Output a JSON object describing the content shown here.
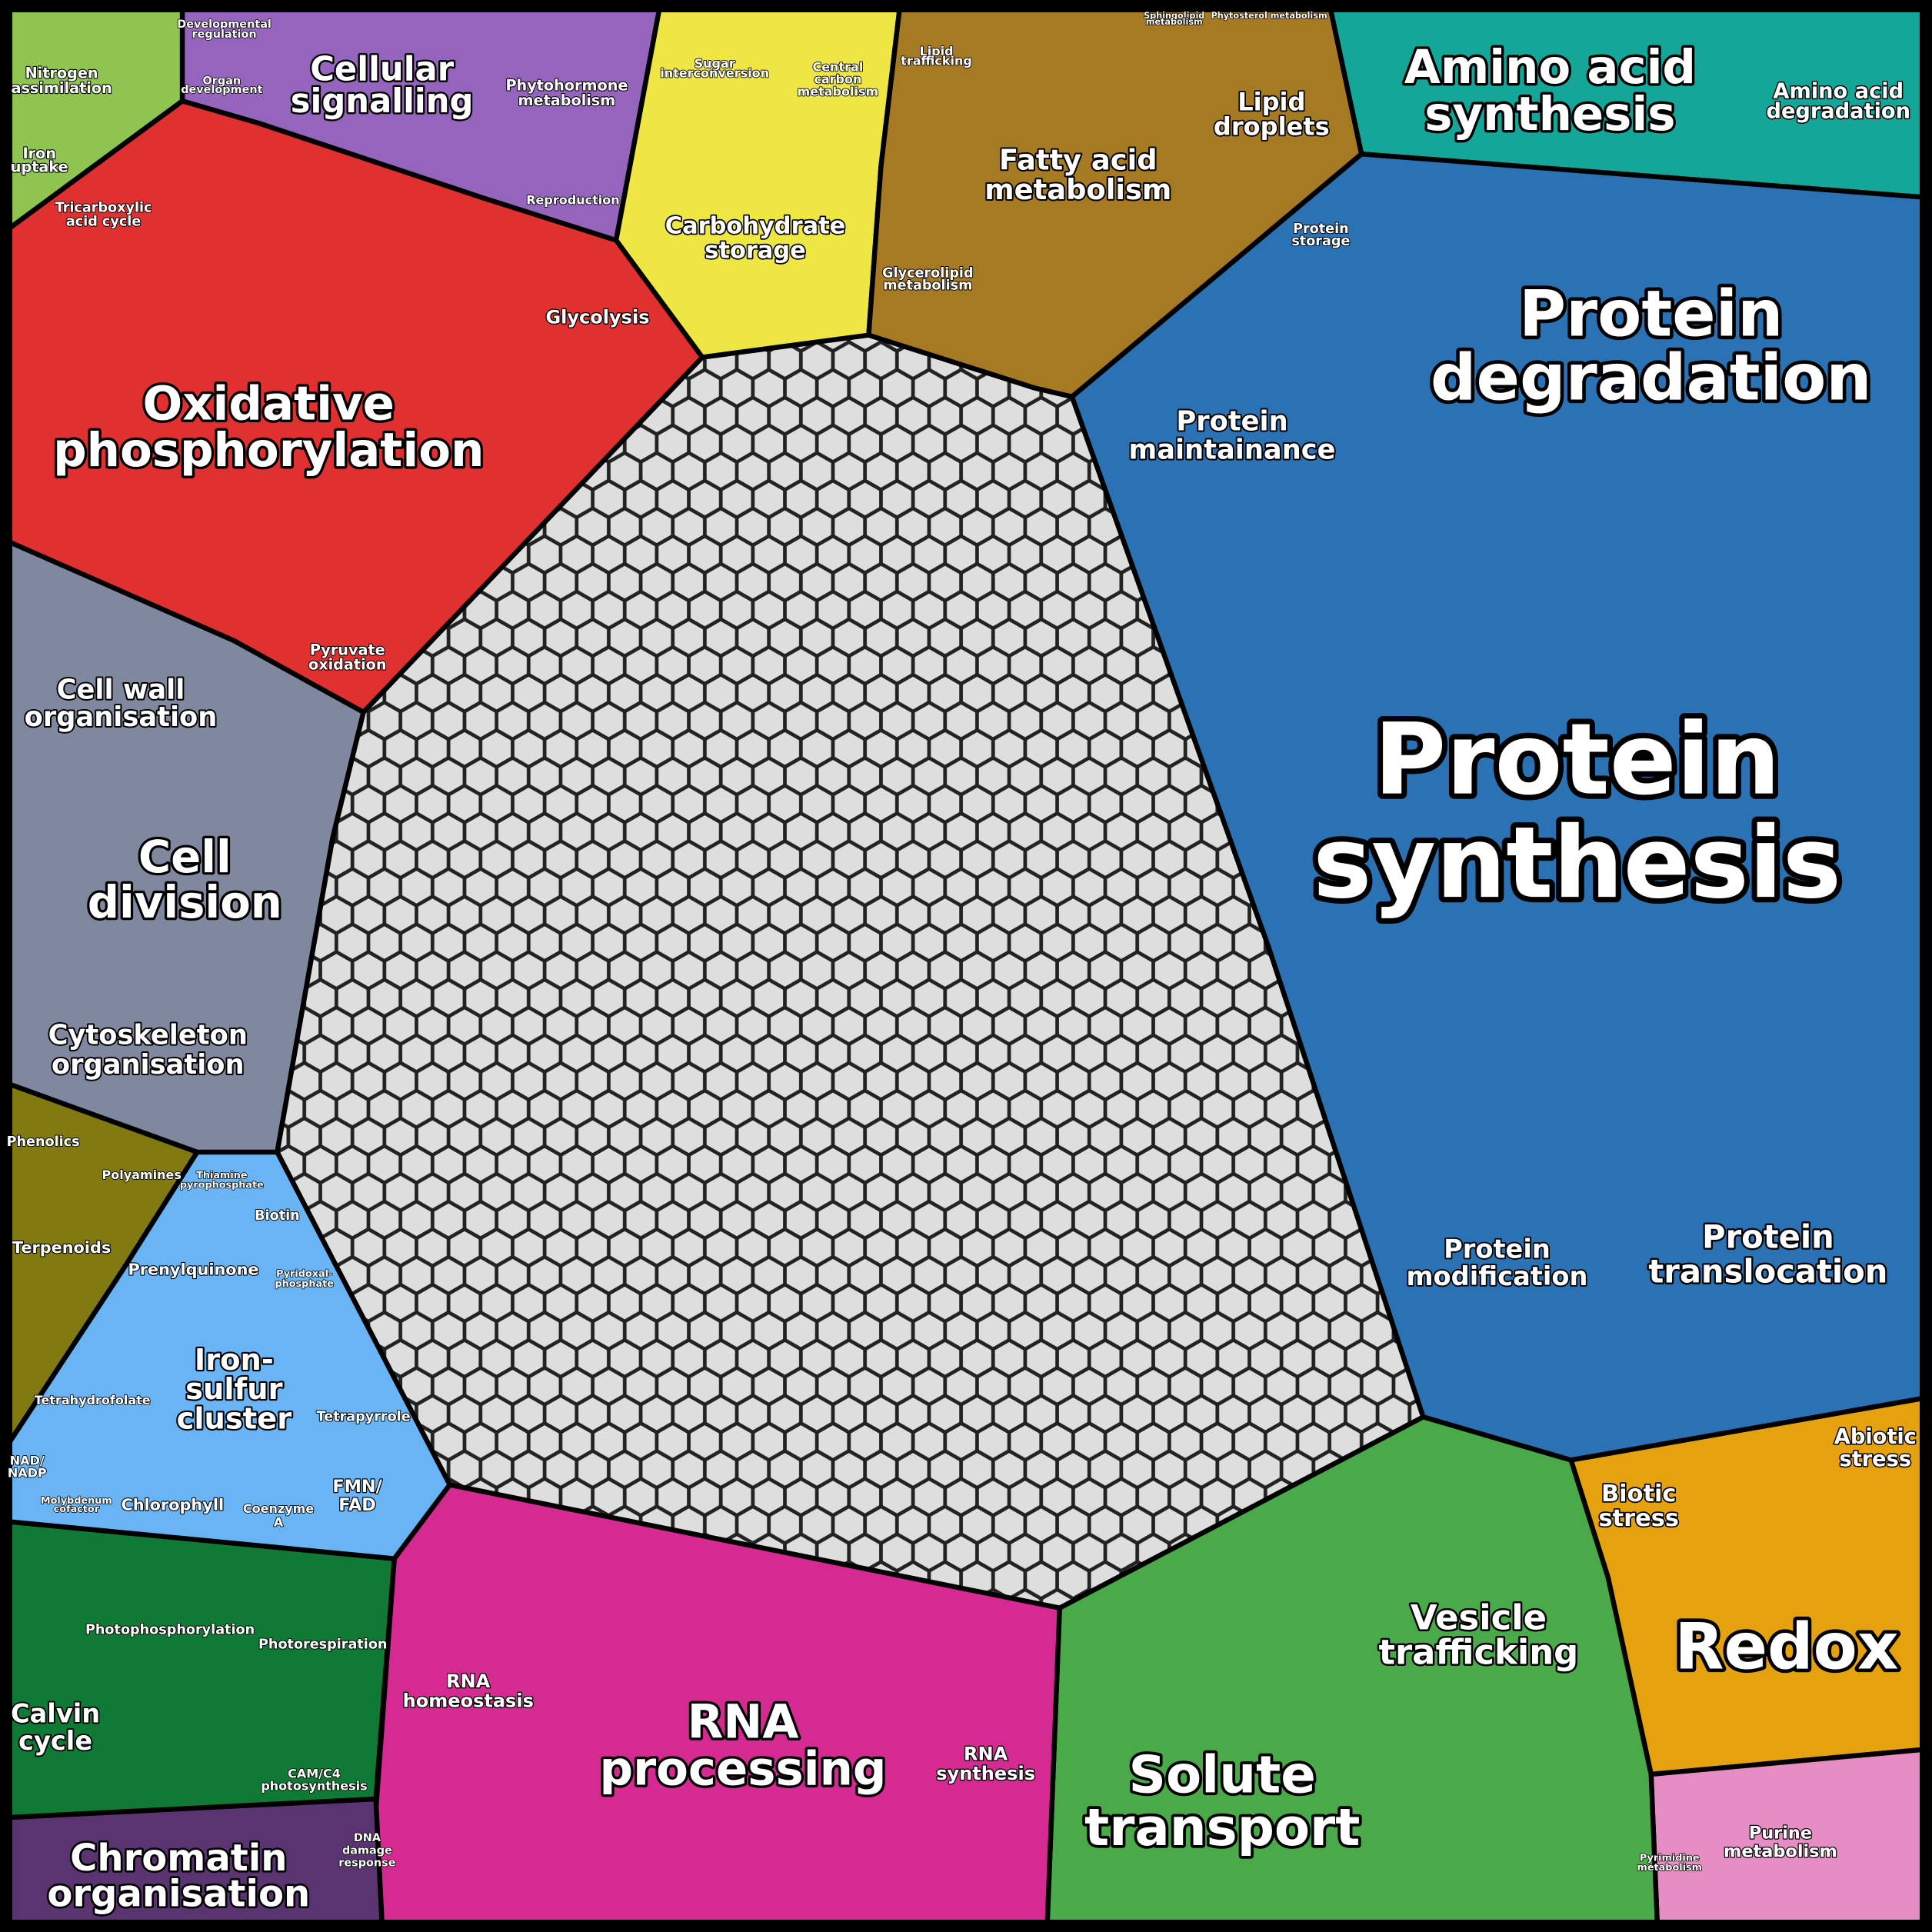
{
  "labels": [
    {
      "lines": [
        "Protein",
        "synthesis"
      ]
    },
    {
      "lines": [
        "Protein",
        "degradation"
      ]
    },
    {
      "lines": [
        "Amino acid",
        "synthesis"
      ]
    },
    {
      "lines": [
        "Amino acid",
        "degradation"
      ]
    },
    {
      "lines": [
        "Protein",
        "maintainance"
      ]
    },
    {
      "lines": [
        "Protein",
        "storage"
      ]
    },
    {
      "lines": [
        "Protein",
        "modification"
      ]
    },
    {
      "lines": [
        "Protein",
        "translocation"
      ]
    },
    {
      "lines": [
        "Redox"
      ]
    },
    {
      "lines": [
        "Biotic",
        "stress"
      ]
    },
    {
      "lines": [
        "Abiotic",
        "stress"
      ]
    },
    {
      "lines": [
        "Purine",
        "metabolism"
      ]
    },
    {
      "lines": [
        "Pyrimidine",
        "metabolism"
      ]
    },
    {
      "lines": [
        "Solute",
        "transport"
      ]
    },
    {
      "lines": [
        "Vesicle",
        "trafficking"
      ]
    },
    {
      "lines": [
        "RNA",
        "processing"
      ]
    },
    {
      "lines": [
        "RNA",
        "homeostasis"
      ]
    },
    {
      "lines": [
        "RNA",
        "synthesis"
      ]
    },
    {
      "lines": [
        "Chromatin",
        "organisation"
      ]
    },
    {
      "lines": [
        "DNA",
        "damage",
        "response"
      ]
    },
    {
      "lines": [
        "Calvin",
        "cycle"
      ]
    },
    {
      "lines": [
        "Photophosphorylation"
      ]
    },
    {
      "lines": [
        "Photorespiration"
      ]
    },
    {
      "lines": [
        "CAM/C4",
        "photosynthesis"
      ]
    },
    {
      "lines": [
        "Iron-",
        "sulfur",
        "cluster"
      ]
    },
    {
      "lines": [
        "Prenylquinone"
      ]
    },
    {
      "lines": [
        "Biotin"
      ]
    },
    {
      "lines": [
        "Tetrapyrrole"
      ]
    },
    {
      "lines": [
        "Tetrahydrofolate"
      ]
    },
    {
      "lines": [
        "Chlorophyll"
      ]
    },
    {
      "lines": [
        "FMN/",
        "FAD"
      ]
    },
    {
      "lines": [
        "Coenzyme",
        "A"
      ]
    },
    {
      "lines": [
        "NAD/",
        "NADP"
      ]
    },
    {
      "lines": [
        "Molybdenum",
        "cofactor"
      ]
    },
    {
      "lines": [
        "Thiamine",
        "pyrophosphate"
      ]
    },
    {
      "lines": [
        "Pyridoxal-",
        "phosphate"
      ]
    },
    {
      "lines": [
        "Phenolics"
      ]
    },
    {
      "lines": [
        "Polyamines"
      ]
    },
    {
      "lines": [
        "Terpenoids"
      ]
    },
    {
      "lines": [
        "Cytoskeleton",
        "organisation"
      ]
    },
    {
      "lines": [
        "Cell",
        "division"
      ]
    },
    {
      "lines": [
        "Cell wall",
        "organisation"
      ]
    },
    {
      "lines": [
        "Oxidative",
        "phosphorylation"
      ]
    },
    {
      "lines": [
        "Pyruvate",
        "oxidation"
      ]
    },
    {
      "lines": [
        "Glycolysis"
      ]
    },
    {
      "lines": [
        "Tricarboxylic",
        "acid cycle"
      ]
    },
    {
      "lines": [
        "Nitrogen",
        "assimilation"
      ]
    },
    {
      "lines": [
        "Iron",
        "uptake"
      ]
    },
    {
      "lines": [
        "Cellular",
        "signalling"
      ]
    },
    {
      "lines": [
        "Developmental",
        "regulation"
      ]
    },
    {
      "lines": [
        "Organ",
        "development"
      ]
    },
    {
      "lines": [
        "Phytohormone",
        "metabolism"
      ]
    },
    {
      "lines": [
        "Reproduction"
      ]
    },
    {
      "lines": [
        "Sugar",
        "interconversion"
      ]
    },
    {
      "lines": [
        "Central",
        "carbon",
        "metabolism"
      ]
    },
    {
      "lines": [
        "Carbohydrate",
        "storage"
      ]
    },
    {
      "lines": [
        "Lipid",
        "trafficking"
      ]
    },
    {
      "lines": [
        "Fatty acid",
        "metabolism"
      ]
    },
    {
      "lines": [
        "Lipid",
        "droplets"
      ]
    },
    {
      "lines": [
        "Glycerolipid",
        "metabolism"
      ]
    },
    {
      "lines": [
        "Sphingolipid",
        "metabolism"
      ]
    },
    {
      "lines": [
        "Phytosterol metabolism"
      ]
    }
  ]
}
